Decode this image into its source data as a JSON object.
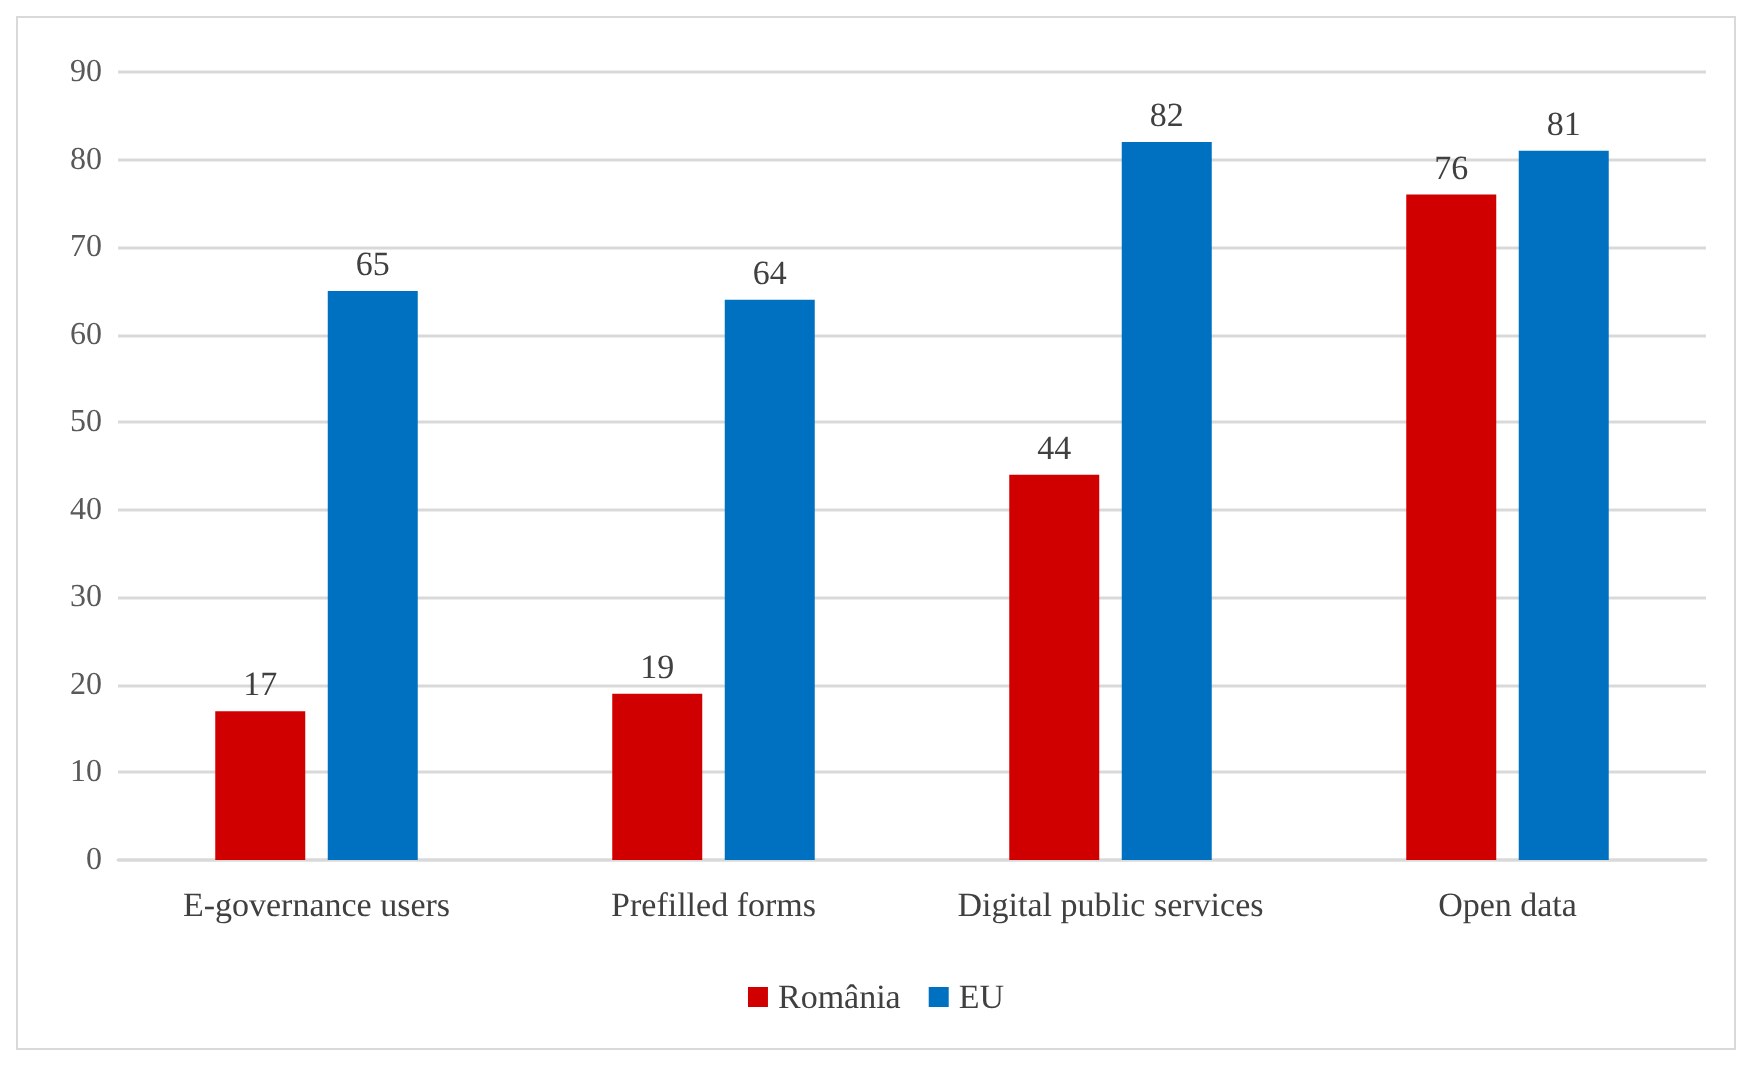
{
  "chart_data": {
    "type": "bar",
    "categories": [
      "E-governance users",
      "Prefilled forms",
      "Digital public services",
      "Open data"
    ],
    "series": [
      {
        "name": "România",
        "color": "#d00000",
        "values": [
          17,
          19,
          44,
          76
        ]
      },
      {
        "name": "EU",
        "color": "#0070c0",
        "values": [
          65,
          64,
          82,
          81
        ]
      }
    ],
    "ylim": [
      0,
      90
    ],
    "yticks": [
      0,
      10,
      20,
      30,
      40,
      50,
      60,
      70,
      80,
      90
    ],
    "grid": "y",
    "legend": "bottom",
    "data_labels": true
  }
}
